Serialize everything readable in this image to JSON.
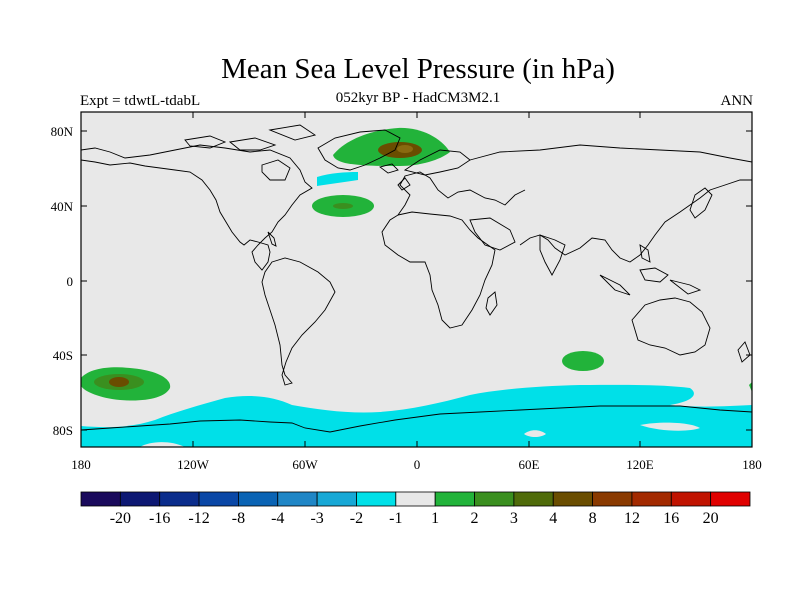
{
  "title": "Mean Sea Level Pressure (in hPa)",
  "subtitle": "052kyr BP - HadCM3M2.1",
  "experiment": "Expt = tdwtL-tdabL",
  "period": "ANN",
  "y_axis_labels": [
    "80N",
    "40N",
    "0",
    "40S",
    "80S"
  ],
  "x_axis_labels": [
    "180",
    "120W",
    "60W",
    "0",
    "60E",
    "120E",
    "180"
  ],
  "colorbar": {
    "colors": [
      "#1a0a5c",
      "#0d1873",
      "#0b2d8c",
      "#0a47a6",
      "#0a63b4",
      "#1f86c6",
      "#17a8d6",
      "#00e0e8",
      "#e8e8e8",
      "#22b33a",
      "#3a8f1f",
      "#4f6b0a",
      "#6a4d00",
      "#8a3a00",
      "#a32a00",
      "#c01300",
      "#e00000"
    ],
    "labels": [
      "-20",
      "-16",
      "-12",
      "-8",
      "-4",
      "-3",
      "-2",
      "-1",
      "1",
      "2",
      "3",
      "4",
      "8",
      "12",
      "16",
      "20"
    ]
  },
  "colors": {
    "background": "#e8e8e8",
    "cyan": "#00e0e8",
    "green": "#22b33a",
    "dark_green": "#3a8f1f",
    "brown": "#6a4d00"
  }
}
